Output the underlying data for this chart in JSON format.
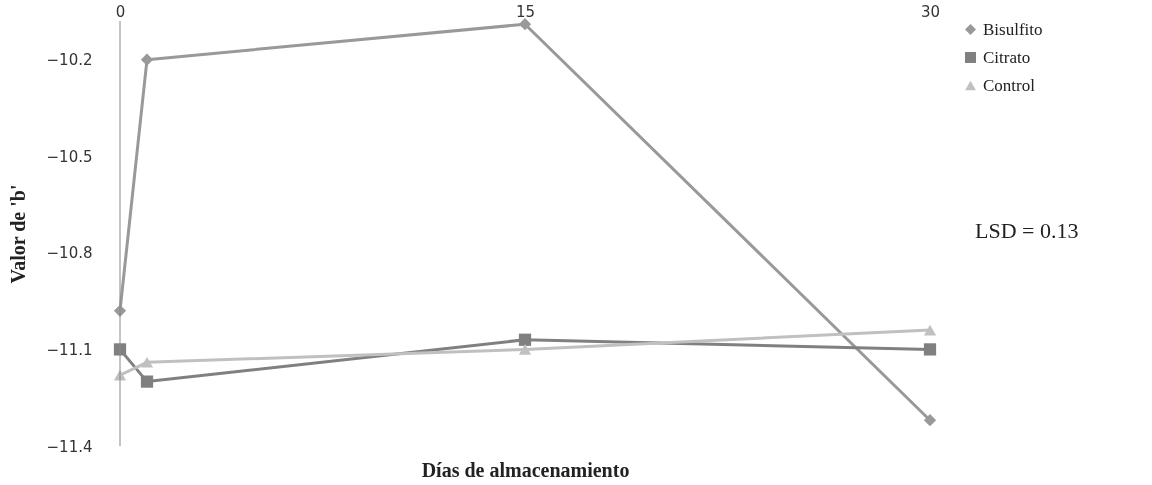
{
  "chart_data": {
    "type": "line",
    "xlabel": "Días de almacenamiento",
    "ylabel": "Valor de 'b'",
    "x": [
      0,
      1,
      15,
      30
    ],
    "xlim": [
      0,
      30
    ],
    "xticks": [
      0,
      15,
      30
    ],
    "ylim": [
      -11.4,
      -10.08
    ],
    "yticks": [
      -10.2,
      -10.5,
      -10.8,
      -11.1,
      -11.4
    ],
    "series": [
      {
        "name": "Bisulfito",
        "color": "#999999",
        "marker": "diamond",
        "values": [
          -10.98,
          -10.2,
          -10.09,
          -11.32
        ]
      },
      {
        "name": "Citrato",
        "color": "#808080",
        "marker": "square",
        "values": [
          -11.1,
          -11.2,
          -11.07,
          -11.1
        ]
      },
      {
        "name": "Control",
        "color": "#c0c0c0",
        "marker": "triangle",
        "values": [
          -11.18,
          -11.14,
          -11.1,
          -11.04
        ]
      }
    ],
    "annotations": [
      "LSD = 0.13"
    ],
    "legend": "top right",
    "grid": false
  }
}
